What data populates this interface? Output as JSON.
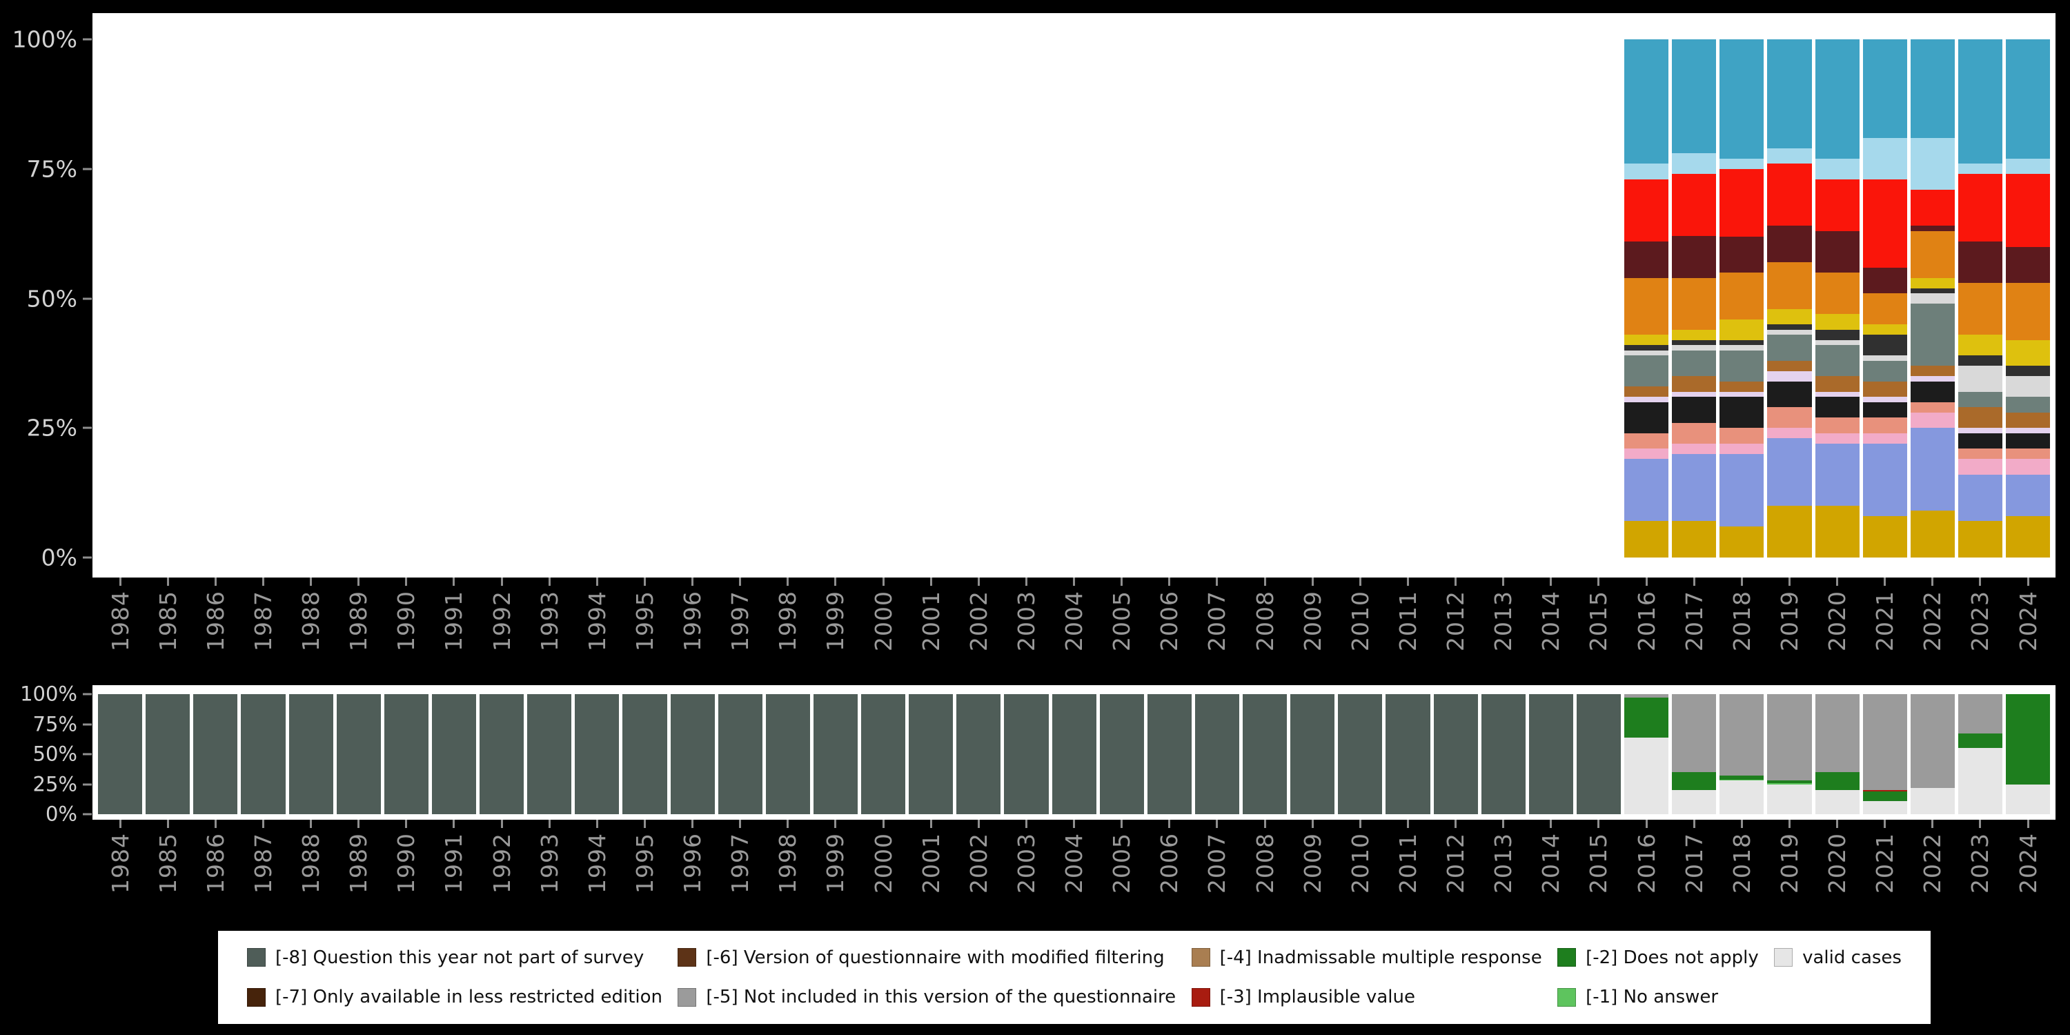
{
  "figure": {
    "background": "#000000",
    "panel_background": "#ffffff",
    "axis_text_color": "#9a9a9a",
    "y_axis_text_color": "#d2d2d2"
  },
  "axes": {
    "y_ticks_top_to_bottom": [
      "100%",
      "75%",
      "50%",
      "25%",
      "0%"
    ]
  },
  "legend": {
    "items": [
      {
        "label": "[-8] Question this year not part of survey",
        "color": "#4f5d58"
      },
      {
        "label": "[-7] Only available in less restricted edition",
        "color": "#46230b"
      },
      {
        "label": "[-6] Version of questionnaire with modified filtering",
        "color": "#5d3317"
      },
      {
        "label": "[-5] Not included in this version of the questionnaire",
        "color": "#9b9b9b"
      },
      {
        "label": "[-4] Inadmissable multiple response",
        "color": "#a97e51"
      },
      {
        "label": "[-3] Implausible value",
        "color": "#a81c10"
      },
      {
        "label": "[-2] Does not apply",
        "color": "#1e7e1e"
      },
      {
        "label": "[-1] No answer",
        "color": "#5ec45e"
      },
      {
        "label": "valid cases",
        "color": "#e6e6e6"
      }
    ]
  },
  "chart_data": [
    {
      "id": "value-distribution-by-year",
      "type": "bar",
      "stacked": true,
      "unit": "percent",
      "y_ticks": [
        "0%",
        "25%",
        "50%",
        "75%",
        "100%"
      ],
      "x": [
        "1984",
        "1985",
        "1986",
        "1987",
        "1988",
        "1989",
        "1990",
        "1991",
        "1992",
        "1993",
        "1994",
        "1995",
        "1996",
        "1997",
        "1998",
        "1999",
        "2000",
        "2001",
        "2002",
        "2003",
        "2004",
        "2005",
        "2006",
        "2007",
        "2008",
        "2009",
        "2010",
        "2011",
        "2012",
        "2013",
        "2014",
        "2015",
        "2016",
        "2017",
        "2018",
        "2019",
        "2020",
        "2021",
        "2022",
        "2023",
        "2024"
      ],
      "bars_present_for_years": [
        "2016",
        "2017",
        "2018",
        "2019",
        "2020",
        "2021",
        "2022",
        "2023",
        "2024"
      ],
      "segments_bottom_to_top": [
        {
          "name": "gold",
          "color": "#d1a500",
          "values": [
            7,
            7,
            6,
            10,
            10,
            8,
            9,
            7,
            8
          ]
        },
        {
          "name": "cornflower-blue",
          "color": "#8598de",
          "values": [
            12,
            13,
            14,
            13,
            12,
            14,
            16,
            9,
            8
          ]
        },
        {
          "name": "light-pink",
          "color": "#f2abc8",
          "values": [
            2,
            2,
            2,
            2,
            2,
            2,
            3,
            3,
            3
          ]
        },
        {
          "name": "salmon",
          "color": "#e8917c",
          "values": [
            3,
            4,
            3,
            4,
            3,
            3,
            2,
            2,
            2
          ]
        },
        {
          "name": "black",
          "color": "#1c1c1c",
          "values": [
            6,
            5,
            6,
            5,
            4,
            3,
            4,
            3,
            3
          ]
        },
        {
          "name": "lavender",
          "color": "#e4d2ee",
          "values": [
            1,
            1,
            1,
            2,
            1,
            1,
            1,
            1,
            1
          ]
        },
        {
          "name": "brown",
          "color": "#aa6a2a",
          "values": [
            2,
            3,
            2,
            2,
            3,
            3,
            2,
            4,
            3
          ]
        },
        {
          "name": "slate-gray",
          "color": "#6d7f7a",
          "values": [
            6,
            5,
            6,
            5,
            6,
            4,
            12,
            3,
            3
          ]
        },
        {
          "name": "light-gray",
          "color": "#d9d9d9",
          "values": [
            1,
            1,
            1,
            1,
            1,
            1,
            2,
            5,
            4
          ]
        },
        {
          "name": "dark-gray",
          "color": "#303030",
          "values": [
            1,
            1,
            1,
            1,
            2,
            4,
            1,
            2,
            2
          ]
        },
        {
          "name": "yellow",
          "color": "#dec10e",
          "values": [
            2,
            2,
            4,
            3,
            3,
            2,
            2,
            4,
            5
          ]
        },
        {
          "name": "orange",
          "color": "#e08214",
          "values": [
            11,
            10,
            9,
            9,
            8,
            6,
            9,
            10,
            11
          ]
        },
        {
          "name": "maroon",
          "color": "#5c1a1e",
          "values": [
            7,
            8,
            7,
            7,
            8,
            5,
            1,
            8,
            7
          ]
        },
        {
          "name": "red",
          "color": "#fa150a",
          "values": [
            12,
            12,
            13,
            12,
            10,
            17,
            7,
            13,
            14
          ]
        },
        {
          "name": "sky-blue",
          "color": "#a6d9ec",
          "values": [
            3,
            4,
            2,
            3,
            4,
            8,
            10,
            2,
            3
          ]
        },
        {
          "name": "teal",
          "color": "#3fa3c4",
          "values": [
            24,
            22,
            23,
            21,
            23,
            19,
            19,
            24,
            23
          ]
        }
      ]
    },
    {
      "id": "missing-vs-valid-by-year",
      "type": "bar",
      "stacked": true,
      "unit": "percent",
      "y_ticks": [
        "0%",
        "25%",
        "50%",
        "75%",
        "100%"
      ],
      "x": [
        "1984",
        "1985",
        "1986",
        "1987",
        "1988",
        "1989",
        "1990",
        "1991",
        "1992",
        "1993",
        "1994",
        "1995",
        "1996",
        "1997",
        "1998",
        "1999",
        "2000",
        "2001",
        "2002",
        "2003",
        "2004",
        "2005",
        "2006",
        "2007",
        "2008",
        "2009",
        "2010",
        "2011",
        "2012",
        "2013",
        "2014",
        "2015",
        "2016",
        "2017",
        "2018",
        "2019",
        "2020",
        "2021",
        "2022",
        "2023",
        "2024"
      ],
      "segments_bottom_to_top": [
        {
          "name": "valid cases",
          "color": "#e6e6e6",
          "values": [
            0,
            0,
            0,
            0,
            0,
            0,
            0,
            0,
            0,
            0,
            0,
            0,
            0,
            0,
            0,
            0,
            0,
            0,
            0,
            0,
            0,
            0,
            0,
            0,
            0,
            0,
            0,
            0,
            0,
            0,
            0,
            0,
            64,
            20,
            28,
            25,
            20,
            11,
            22,
            55,
            25
          ]
        },
        {
          "name": "[-1] No answer",
          "color": "#5ec45e",
          "values": [
            0,
            0,
            0,
            0,
            0,
            0,
            0,
            0,
            0,
            0,
            0,
            0,
            0,
            0,
            0,
            0,
            0,
            0,
            0,
            0,
            0,
            0,
            0,
            0,
            0,
            0,
            0,
            0,
            0,
            0,
            0,
            0,
            0,
            0,
            1,
            1,
            0,
            0,
            0,
            0,
            0
          ]
        },
        {
          "name": "[-2] Does not apply",
          "color": "#1e7e1e",
          "values": [
            0,
            0,
            0,
            0,
            0,
            0,
            0,
            0,
            0,
            0,
            0,
            0,
            0,
            0,
            0,
            0,
            0,
            0,
            0,
            0,
            0,
            0,
            0,
            0,
            0,
            0,
            0,
            0,
            0,
            0,
            0,
            0,
            33,
            15,
            3,
            2,
            15,
            8,
            0,
            12,
            75
          ]
        },
        {
          "name": "[-3] Implausible value",
          "color": "#a81c10",
          "values": [
            0,
            0,
            0,
            0,
            0,
            0,
            0,
            0,
            0,
            0,
            0,
            0,
            0,
            0,
            0,
            0,
            0,
            0,
            0,
            0,
            0,
            0,
            0,
            0,
            0,
            0,
            0,
            0,
            0,
            0,
            0,
            0,
            0,
            0,
            0,
            0,
            0,
            1,
            0,
            0,
            0
          ]
        },
        {
          "name": "[-5] Not included in this version of the questionnaire",
          "color": "#9b9b9b",
          "values": [
            0,
            0,
            0,
            0,
            0,
            0,
            0,
            0,
            0,
            0,
            0,
            0,
            0,
            0,
            0,
            0,
            0,
            0,
            0,
            0,
            0,
            0,
            0,
            0,
            0,
            0,
            0,
            0,
            0,
            0,
            0,
            0,
            3,
            65,
            68,
            72,
            65,
            80,
            78,
            33,
            0
          ]
        },
        {
          "name": "[-8] Question this year not part of survey",
          "color": "#4f5d58",
          "values": [
            100,
            100,
            100,
            100,
            100,
            100,
            100,
            100,
            100,
            100,
            100,
            100,
            100,
            100,
            100,
            100,
            100,
            100,
            100,
            100,
            100,
            100,
            100,
            100,
            100,
            100,
            100,
            100,
            100,
            100,
            100,
            100,
            0,
            0,
            0,
            0,
            0,
            0,
            0,
            0,
            0
          ]
        }
      ]
    }
  ]
}
